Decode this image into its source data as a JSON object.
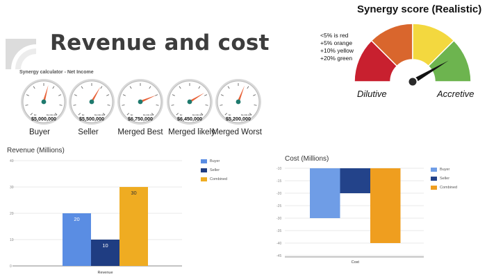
{
  "page_title": "Revenue and cost",
  "calculator": {
    "title": "Synergy calculator - Net Income",
    "gauges": [
      {
        "label": "Buyer",
        "value_text": "$5,000,000",
        "min_label": "$0",
        "max_label": "$9,000,000",
        "level": 0.556
      },
      {
        "label": "Seller",
        "value_text": "$5,500,000",
        "min_label": "$0",
        "max_label": "$9,000,000",
        "level": 0.611
      },
      {
        "label": "Merged  Best",
        "value_text": "$6,750,000",
        "min_label": "$0",
        "max_label": "$9,000,000",
        "level": 0.75
      },
      {
        "label": "Merged likely",
        "value_text": "$6,450,000",
        "min_label": "$0",
        "max_label": "$9,000,000",
        "level": 0.717
      },
      {
        "label": "Merged Worst",
        "value_text": "$5,200,000",
        "min_label": "$0",
        "max_label": "$9,000,000",
        "level": 0.578
      }
    ]
  },
  "synergy_score": {
    "title": "Synergy score (Realistic)",
    "notes": [
      "<5% is red",
      "+5% orange",
      "+10% yellow",
      "+20% green"
    ],
    "left_label": "Dilutive",
    "right_label": "Accretive",
    "segments": [
      {
        "name": "red",
        "color": "#c8202f"
      },
      {
        "name": "orange",
        "color": "#d9662d"
      },
      {
        "name": "yellow",
        "color": "#f3d83f"
      },
      {
        "name": "green",
        "color": "#6db44f"
      }
    ],
    "needle_level": 0.83
  },
  "colors": {
    "buyer": "#5a8de3",
    "seller": "#1f3d82",
    "combined": "#efac22",
    "cost_buyer": "#6f9de6",
    "cost_seller": "#23438a",
    "cost_combined": "#ef9e1f",
    "gauge_needle": "#e8633a",
    "gauge_hub": "#1f7a6e"
  },
  "chart_data": [
    {
      "type": "bar",
      "title": "Revenue (Millions)",
      "categories": [
        "Revenue"
      ],
      "series": [
        {
          "name": "Buyer",
          "values": [
            20
          ]
        },
        {
          "name": "Seller",
          "values": [
            10
          ]
        },
        {
          "name": "Combined",
          "values": [
            30
          ]
        }
      ],
      "ylim": [
        0,
        40
      ],
      "yticks": [
        "0",
        "10",
        "20",
        "30",
        "40"
      ],
      "data_labels": [
        "20",
        "10",
        "30"
      ],
      "legend": "right",
      "grid": true
    },
    {
      "type": "bar",
      "title": "Cost (Millions)",
      "categories": [
        "Cost"
      ],
      "series": [
        {
          "name": "Buyer",
          "values": [
            -30
          ]
        },
        {
          "name": "Seller",
          "values": [
            -20
          ]
        },
        {
          "name": "Combined",
          "values": [
            -40
          ]
        }
      ],
      "ylim": [
        -45,
        -10
      ],
      "yticks": [
        "-10",
        "-15",
        "-20",
        "-25",
        "-30",
        "-35",
        "-40",
        "-45"
      ],
      "legend": "right",
      "grid": true
    }
  ]
}
